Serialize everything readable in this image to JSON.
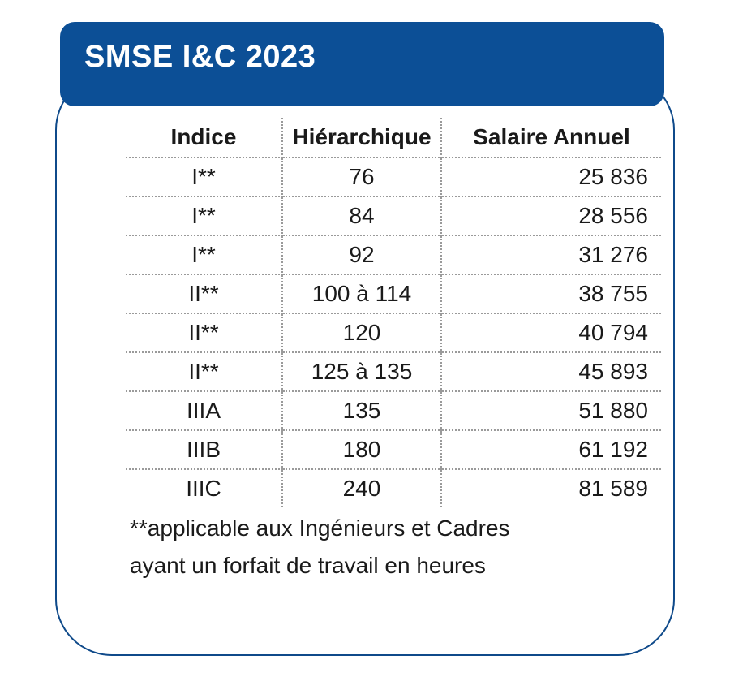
{
  "title": "SMSE I&C 2023",
  "table": {
    "headers": [
      "Indice",
      "Hiérarchique",
      "Salaire Annuel"
    ],
    "rows": [
      [
        "I**",
        "76",
        "25 836"
      ],
      [
        "I**",
        "84",
        "28 556"
      ],
      [
        "I**",
        "92",
        "31 276"
      ],
      [
        "II**",
        "100 à 114",
        "38 755"
      ],
      [
        "II**",
        "120",
        "40 794"
      ],
      [
        "II**",
        "125 à 135",
        "45 893"
      ],
      [
        "IIIA",
        "135",
        "51 880"
      ],
      [
        "IIIB",
        "180",
        "61 192"
      ],
      [
        "IIIC",
        "240",
        "81 589"
      ]
    ]
  },
  "footnote": {
    "line1": "**applicable aux Ingénieurs et Cadres",
    "line2": "ayant un forfait de travail en heures"
  },
  "colors": {
    "header_bg": "#0c4f96",
    "border": "#0f4a8a"
  }
}
